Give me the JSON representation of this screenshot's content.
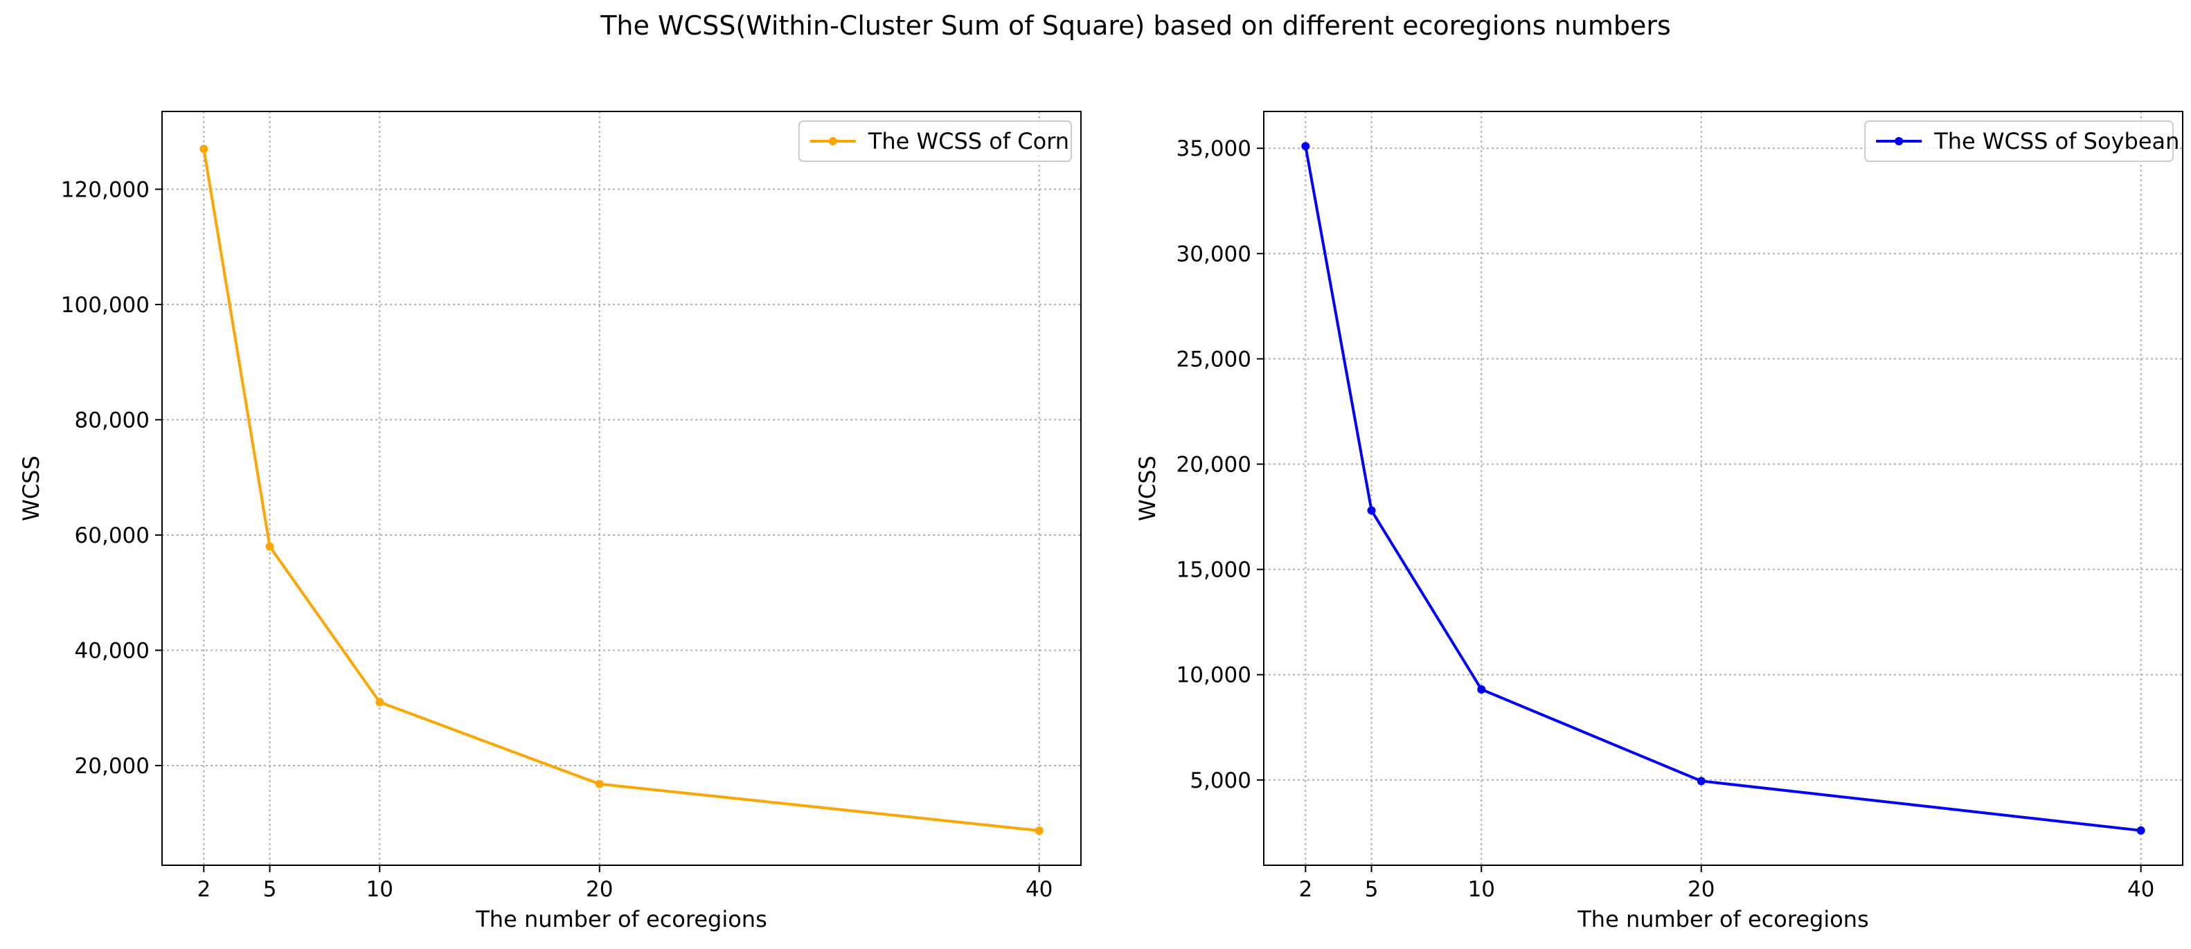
{
  "figure": {
    "suptitle": "The WCSS(Within-Cluster Sum of Square) based on different ecoregions numbers"
  },
  "chart_data": [
    {
      "type": "line",
      "title": "",
      "xlabel": "The number of ecoregions",
      "ylabel": "WCSS",
      "x": [
        2,
        5,
        10,
        20,
        40
      ],
      "xticks": [
        2,
        5,
        10,
        20,
        40
      ],
      "xtick_labels": [
        "2",
        "5",
        "10",
        "20",
        "40"
      ],
      "xlim": [
        0.1,
        41.9
      ],
      "ylim": [
        2700,
        133500
      ],
      "yticks": [
        20000,
        40000,
        60000,
        80000,
        100000,
        120000
      ],
      "ytick_labels": [
        "20,000",
        "40,000",
        "60,000",
        "80,000",
        "100,000",
        "120,000"
      ],
      "grid": true,
      "legend_placement": "top-right",
      "series": [
        {
          "name": "The WCSS of Corn",
          "color": "#FFA500",
          "marker": "circle",
          "values": [
            127000,
            58000,
            31000,
            16800,
            8700
          ]
        }
      ]
    },
    {
      "type": "line",
      "title": "",
      "xlabel": "The number of ecoregions",
      "ylabel": "WCSS",
      "x": [
        2,
        5,
        10,
        20,
        40
      ],
      "xticks": [
        2,
        5,
        10,
        20,
        40
      ],
      "xtick_labels": [
        "2",
        "5",
        "10",
        "20",
        "40"
      ],
      "xlim": [
        0.1,
        41.9
      ],
      "ylim": [
        950,
        36750
      ],
      "yticks": [
        5000,
        10000,
        15000,
        20000,
        25000,
        30000,
        35000
      ],
      "ytick_labels": [
        "5,000",
        "10,000",
        "15,000",
        "20,000",
        "25,000",
        "30,000",
        "35,000"
      ],
      "grid": true,
      "legend_placement": "top-right",
      "series": [
        {
          "name": "The WCSS of Soybean",
          "color": "#0000FF",
          "marker": "circle",
          "values": [
            35100,
            17800,
            9300,
            4950,
            2600
          ]
        }
      ]
    }
  ]
}
